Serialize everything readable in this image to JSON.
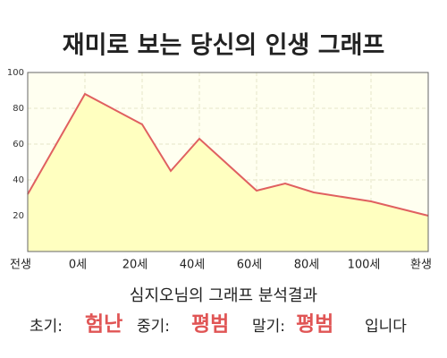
{
  "chart_data": {
    "type": "area",
    "title": "재미로 보는 당신의 인생 그래프",
    "x": [
      -20,
      0,
      20,
      30,
      40,
      60,
      70,
      80,
      100,
      120
    ],
    "values": [
      32,
      88,
      71,
      45,
      63,
      34,
      38,
      33,
      28,
      20
    ],
    "color": "#e06060",
    "fill": "#ffffc0",
    "grid": true,
    "xlim": [
      -20,
      120
    ],
    "xticks": [
      {
        "value": -20,
        "label": "전생"
      },
      {
        "value": 0,
        "label": "0세"
      },
      {
        "value": 20,
        "label": "20세"
      },
      {
        "value": 40,
        "label": "40세"
      },
      {
        "value": 60,
        "label": "60세"
      },
      {
        "value": 80,
        "label": "80세"
      },
      {
        "value": 100,
        "label": "100세"
      },
      {
        "value": 120,
        "label": "환생"
      }
    ],
    "ylim": [
      0,
      100
    ],
    "yticks": [
      20,
      40,
      60,
      80,
      100
    ]
  },
  "analysis": {
    "title": "심지오님의 그래프 분석결과",
    "items": [
      {
        "label": "초기:",
        "value": "험난"
      },
      {
        "label": "중기:",
        "value": "평범"
      },
      {
        "label": "말기:",
        "value": "평범"
      }
    ],
    "ending": "입니다"
  }
}
